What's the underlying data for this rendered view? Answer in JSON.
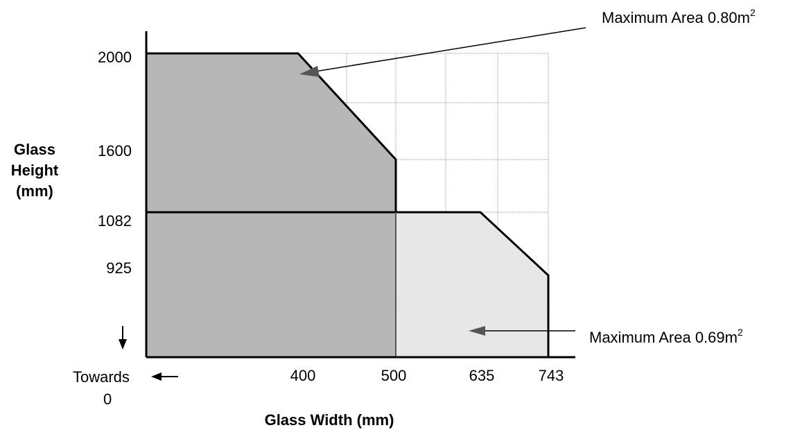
{
  "chart_data": {
    "type": "area",
    "xlabel": "Glass Width (mm)",
    "ylabel": [
      "Glass",
      "Height",
      "(mm)"
    ],
    "x_ticks": [
      "400",
      "500",
      "635",
      "743"
    ],
    "y_ticks": [
      "2000",
      "1600",
      "1082",
      "925"
    ],
    "towards_label": [
      "Towards",
      "0"
    ],
    "grid": true,
    "series": [
      {
        "area_label": "Maximum Area 0.80m",
        "area_label_sup": "2",
        "fill": "#b3b3b3",
        "points": [
          [
            0,
            2000
          ],
          [
            400,
            2000
          ],
          [
            500,
            1600
          ],
          [
            500,
            1082
          ],
          [
            0,
            1082
          ]
        ]
      },
      {
        "area_label": "Maximum Area 0.69m",
        "area_label_sup": "2",
        "fill": "#e6e6e6",
        "points": [
          [
            500,
            1082
          ],
          [
            635,
            1082
          ],
          [
            743,
            925
          ],
          [
            743,
            0
          ],
          [
            500,
            0
          ]
        ]
      }
    ],
    "lower_block": {
      "fill": "#b3b3b3",
      "points": [
        [
          0,
          1082
        ],
        [
          500,
          1082
        ],
        [
          500,
          0
        ],
        [
          0,
          0
        ]
      ]
    }
  }
}
